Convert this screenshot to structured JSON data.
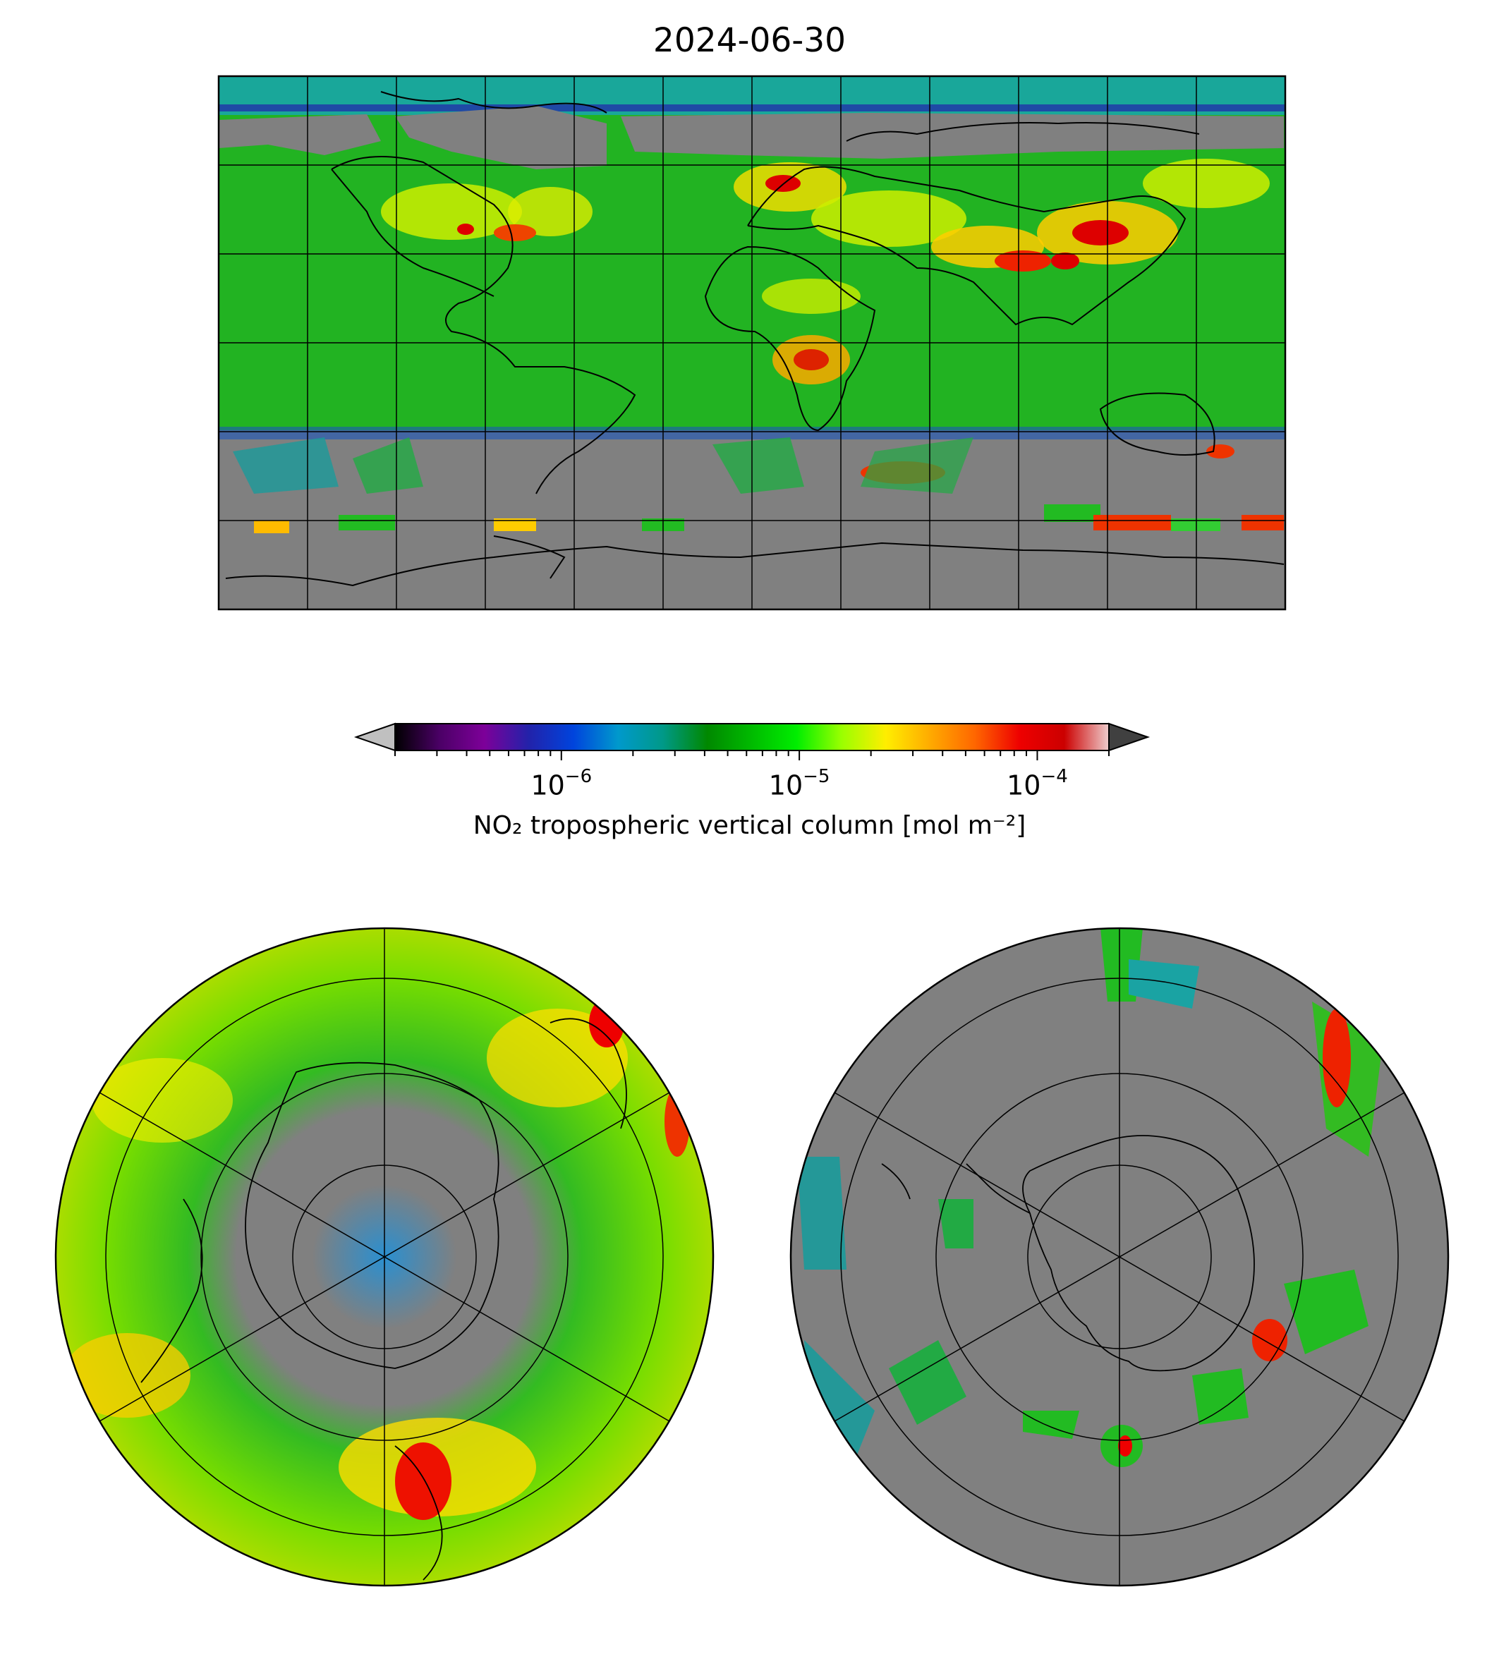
{
  "title": "2024-06-30",
  "colorbar": {
    "label": "NO₂ tropospheric vertical column [mol m⁻²]",
    "ticks": [
      {
        "base": "10",
        "exp": "−6",
        "value": 1e-06
      },
      {
        "base": "10",
        "exp": "−5",
        "value": 1e-05
      },
      {
        "base": "10",
        "exp": "−4",
        "value": 0.0001
      }
    ],
    "scale": "log",
    "range": [
      2e-07,
      0.0002
    ],
    "extend": "both",
    "colors": [
      "#000000",
      "#4b0066",
      "#7d0099",
      "#2222aa",
      "#0044dd",
      "#0099cc",
      "#009988",
      "#008800",
      "#00bb00",
      "#00ee00",
      "#99ff00",
      "#ffee00",
      "#ffaa00",
      "#ff6600",
      "#ee0000",
      "#cc0000",
      "#eecccc"
    ],
    "under_color": "#c0c0c0",
    "over_color": "#404040"
  },
  "maps": {
    "global": {
      "projection": "plate-carree",
      "land_fill": "#808080"
    },
    "north_polar": {
      "projection": "north-polar-stereographic"
    },
    "south_polar": {
      "projection": "south-polar-stereographic"
    }
  }
}
